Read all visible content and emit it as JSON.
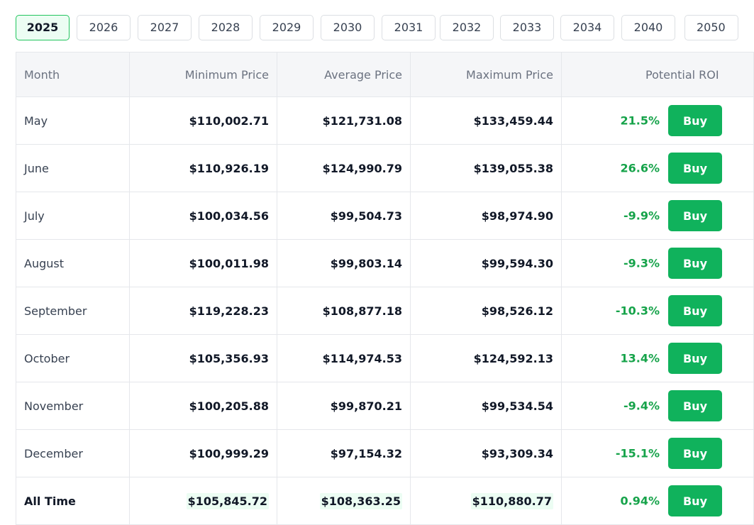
{
  "years": [
    "2025",
    "2026",
    "2027",
    "2028",
    "2029",
    "2030",
    "2031",
    "2032",
    "2033",
    "2034",
    "2040",
    "2050"
  ],
  "active_year": "2025",
  "table": {
    "headers": {
      "month": "Month",
      "min": "Minimum Price",
      "avg": "Average Price",
      "max": "Maximum Price",
      "roi": "Potential ROI"
    },
    "rows": [
      {
        "month": "May",
        "min": "$110,002.71",
        "avg": "$121,731.08",
        "max": "$133,459.44",
        "roi": "21.5%",
        "action": "Buy"
      },
      {
        "month": "June",
        "min": "$110,926.19",
        "avg": "$124,990.79",
        "max": "$139,055.38",
        "roi": "26.6%",
        "action": "Buy"
      },
      {
        "month": "July",
        "min": "$100,034.56",
        "avg": "$99,504.73",
        "max": "$98,974.90",
        "roi": "-9.9%",
        "action": "Buy"
      },
      {
        "month": "August",
        "min": "$100,011.98",
        "avg": "$99,803.14",
        "max": "$99,594.30",
        "roi": "-9.3%",
        "action": "Buy"
      },
      {
        "month": "September",
        "min": "$119,228.23",
        "avg": "$108,877.18",
        "max": "$98,526.12",
        "roi": "-10.3%",
        "action": "Buy"
      },
      {
        "month": "October",
        "min": "$105,356.93",
        "avg": "$114,974.53",
        "max": "$124,592.13",
        "roi": "13.4%",
        "action": "Buy"
      },
      {
        "month": "November",
        "min": "$100,205.88",
        "avg": "$99,870.21",
        "max": "$99,534.54",
        "roi": "-9.4%",
        "action": "Buy"
      },
      {
        "month": "December",
        "min": "$100,999.29",
        "avg": "$97,154.32",
        "max": "$93,309.34",
        "roi": "-15.1%",
        "action": "Buy"
      }
    ],
    "all_time": {
      "month": "All Time",
      "min": "$105,845.72",
      "avg": "$108,363.25",
      "max": "$110,880.77",
      "roi": "0.94%",
      "action": "Buy"
    }
  },
  "colors": {
    "accent": "#10b25c",
    "roi_text": "#16a34a",
    "active_tab_bg": "#ecfdf3"
  }
}
